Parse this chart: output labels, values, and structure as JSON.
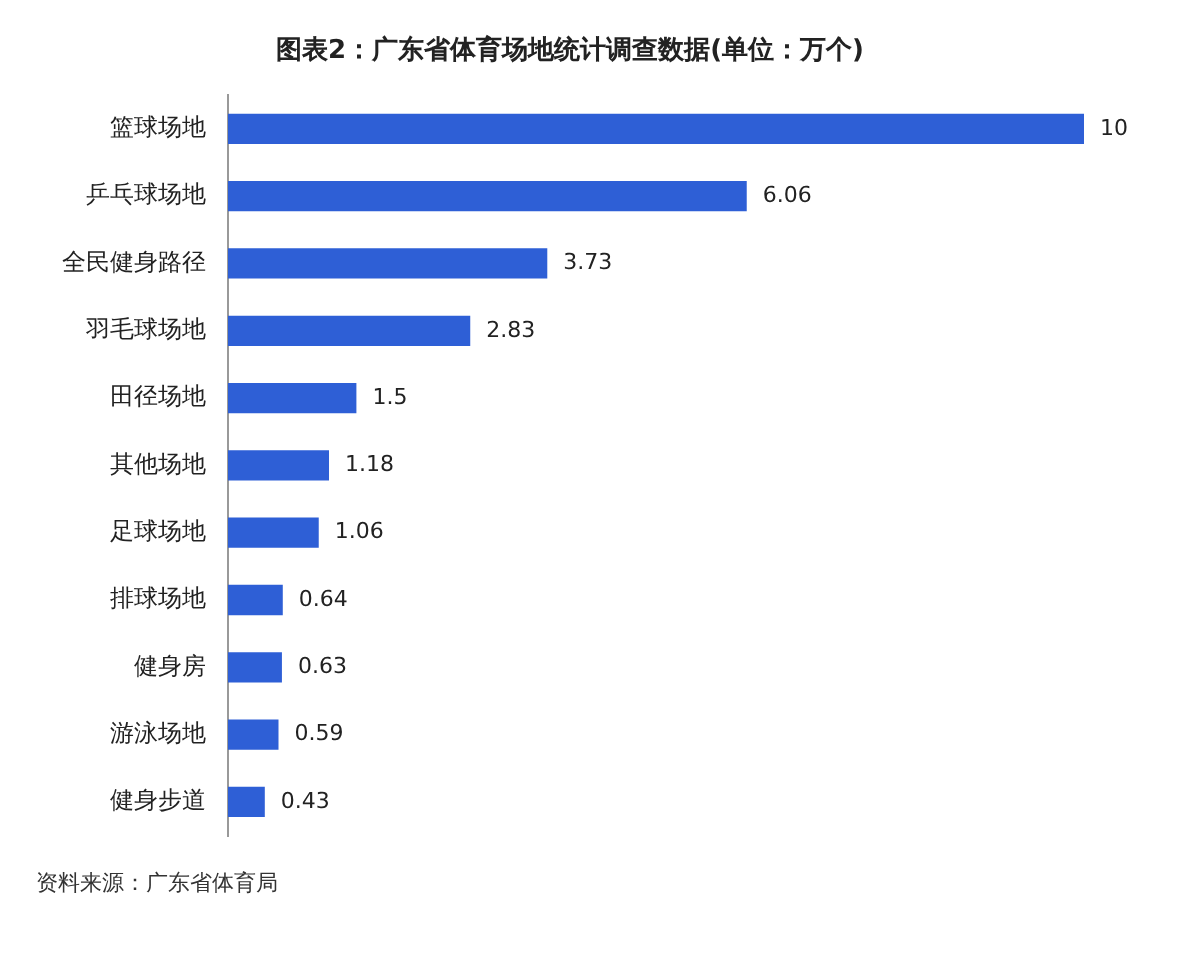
{
  "chart_data": {
    "type": "bar",
    "orientation": "horizontal",
    "title": "图表2：广东省体育场地统计调查数据(单位：万个)",
    "categories": [
      "篮球场地",
      "乒乓球场地",
      "全民健身路径",
      "羽毛球场地",
      "田径场地",
      "其他场地",
      "足球场地",
      "排球场地",
      "健身房",
      "游泳场地",
      "健身步道"
    ],
    "values": [
      10,
      6.06,
      3.73,
      2.83,
      1.5,
      1.18,
      1.06,
      0.64,
      0.63,
      0.59,
      0.43
    ],
    "color": "#2e5fd6",
    "data_labels": true,
    "legend": false,
    "annotations": [
      "资料来源：广东省体育局"
    ]
  }
}
